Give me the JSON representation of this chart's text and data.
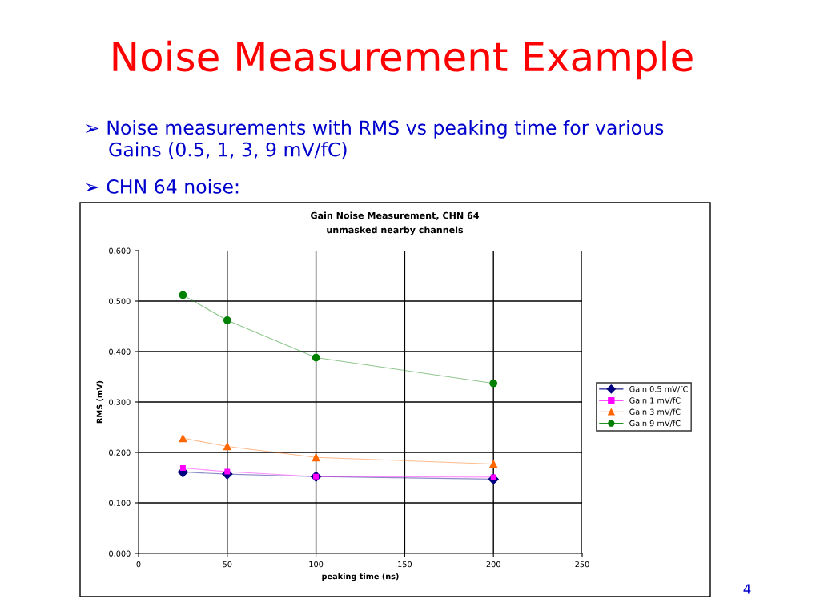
{
  "chart_data": {
    "type": "line",
    "title": "Gain Noise Measurement, CHN 64",
    "subtitle": "unmasked nearby channels",
    "xlabel": "peaking time (ns)",
    "ylabel": "RMS (mV)",
    "annotations": [
      "Noise Measurement Example",
      "➢ Noise measurements with RMS vs peaking time for various\n    Gains (0.5, 1, 3, 9 mV/fC)",
      "➢ CHN 64 noise:",
      "4"
    ],
    "x": [
      25,
      50,
      100,
      200
    ],
    "series": [
      {
        "name": "Gain 0.5 mV/fC",
        "color": "#000080",
        "marker": "diamond",
        "values": [
          0.161,
          0.157,
          0.152,
          0.147
        ]
      },
      {
        "name": "Gain 1 mV/fC",
        "color": "#ff00ff",
        "marker": "square",
        "values": [
          0.169,
          0.162,
          0.152,
          0.151
        ]
      },
      {
        "name": "Gain 3 mV/fC",
        "color": "#ff6600",
        "marker": "triangle",
        "values": [
          0.228,
          0.212,
          0.19,
          0.177
        ]
      },
      {
        "name": "Gain 9 mV/fC",
        "color": "#008000",
        "marker": "circle",
        "values": [
          0.512,
          0.462,
          0.388,
          0.337
        ]
      }
    ],
    "xlim": [
      0,
      250
    ],
    "xticks": [
      0,
      50,
      100,
      150,
      200,
      250
    ],
    "ylim": [
      0,
      0.6
    ],
    "yticks": [
      {
        "value": 0,
        "label": "0.000"
      },
      {
        "value": 0.1,
        "label": "0.100"
      },
      {
        "value": 0.2,
        "label": "0.200"
      },
      {
        "value": 0.3,
        "label": "0.300"
      },
      {
        "value": 0.4,
        "label": "0.400"
      },
      {
        "value": 0.5,
        "label": "0.500"
      },
      {
        "value": 0.6,
        "label": "0.600"
      }
    ],
    "grid": true,
    "legend": "right",
    "line_style": "solid"
  }
}
